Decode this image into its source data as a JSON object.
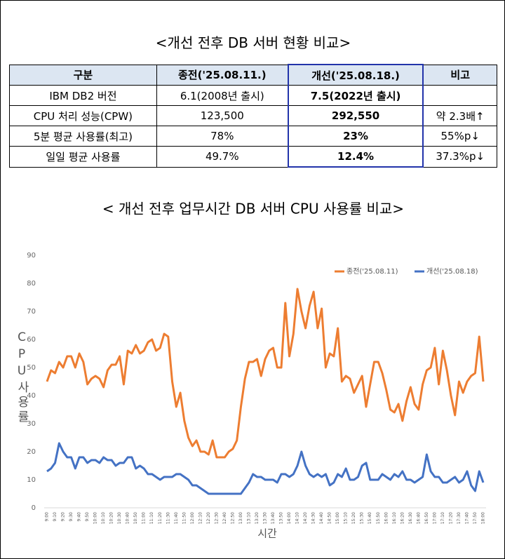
{
  "table": {
    "title": "<개선 전후 DB 서버 현황 비교>",
    "header": [
      "구분",
      "종전('25.08.11.)",
      "개선('25.08.18.)",
      "비고"
    ],
    "rows": [
      [
        "IBM DB2 버전",
        "6.1(2008년 출시)",
        "7.5(2022년 출시)"
      ],
      [
        "CPU 처리 성능(CPW)",
        "123,500",
        "292,550",
        "약 2.3배↑"
      ],
      [
        "5분 평균 사용률(최고)",
        "78%",
        "23%",
        "55%p↓"
      ],
      [
        "일일 평균 사용률",
        "49.7%",
        "12.4%",
        "37.3%p↓"
      ]
    ]
  },
  "chart_data": {
    "type": "line",
    "title": "< 개선 전후 업무시간 DB 서버 CPU 사용률 비교>",
    "y_label": "CPU사용률",
    "x_label": "시간",
    "categories": [
      "9:00",
      null,
      "9:10",
      null,
      "9:20",
      null,
      "9:30",
      null,
      "9:40",
      null,
      "9:50",
      null,
      "10:00",
      null,
      "10:10",
      null,
      "10:20",
      null,
      "10:30",
      null,
      "10:40",
      null,
      "10:50",
      null,
      "11:00",
      null,
      "11:10",
      null,
      "11:20",
      null,
      "11:30",
      null,
      "11:40",
      null,
      "11:50",
      null,
      "12:00",
      null,
      "12:10",
      null,
      "12:20",
      null,
      "12:30",
      null,
      "12:40",
      null,
      "12:50",
      null,
      "13:00",
      null,
      "13:10",
      null,
      "13:20",
      null,
      "13:30",
      null,
      "13:40",
      null,
      "13:50",
      null,
      "14:00",
      null,
      "14:10",
      null,
      "14:20",
      null,
      "14:30",
      null,
      "14:40",
      null,
      "14:50",
      null,
      "15:00",
      null,
      "15:10",
      null,
      "15:20",
      null,
      "15:30",
      null,
      "15:40",
      null,
      "15:50",
      null,
      "16:00",
      null,
      "16:10",
      null,
      "16:20",
      null,
      "16:30",
      null,
      "16:40",
      null,
      "16:50",
      null,
      "17:00",
      null,
      "17:10",
      null,
      "17:20",
      null,
      "17:30",
      null,
      "17:40",
      null,
      "17:50",
      null,
      "18:00"
    ],
    "series": [
      {
        "name": "종전('25.08.11)",
        "color": "#ed7d31",
        "values": [
          45,
          49,
          48,
          52,
          50,
          54,
          54,
          50,
          55,
          52,
          44,
          46,
          47,
          46,
          43,
          49,
          51,
          51,
          54,
          44,
          56,
          55,
          58,
          55,
          56,
          59,
          60,
          56,
          57,
          62,
          61,
          45,
          36,
          41,
          31,
          25,
          22,
          24,
          20,
          20,
          19,
          24,
          18,
          18,
          18,
          20,
          21,
          24,
          36,
          46,
          52,
          52,
          53,
          47,
          53,
          56,
          57,
          50,
          50,
          73,
          54,
          62,
          78,
          70,
          64,
          72,
          77,
          64,
          71,
          50,
          55,
          54,
          64,
          45,
          47,
          46,
          41,
          44,
          47,
          36,
          44,
          52,
          52,
          48,
          42,
          35,
          34,
          37,
          31,
          38,
          43,
          37,
          35,
          44,
          49,
          50,
          57,
          44,
          56,
          49,
          40,
          33,
          45,
          41,
          45,
          47,
          48,
          61,
          45
        ]
      },
      {
        "name": "개선('25.08.18)",
        "color": "#4472c4",
        "values": [
          13,
          14,
          16,
          23,
          20,
          18,
          18,
          14,
          18,
          18,
          16,
          17,
          17,
          16,
          18,
          17,
          17,
          15,
          16,
          16,
          18,
          18,
          14,
          15,
          14,
          12,
          12,
          11,
          10,
          11,
          11,
          11,
          12,
          12,
          11,
          10,
          8,
          8,
          7,
          6,
          5,
          5,
          5,
          5,
          5,
          5,
          5,
          5,
          5,
          7,
          9,
          12,
          11,
          11,
          10,
          10,
          10,
          9,
          12,
          12,
          11,
          12,
          15,
          20,
          15,
          12,
          11,
          12,
          11,
          12,
          8,
          9,
          12,
          11,
          14,
          10,
          10,
          11,
          15,
          16,
          10,
          10,
          10,
          12,
          11,
          10,
          12,
          11,
          13,
          10,
          10,
          9,
          10,
          11,
          19,
          13,
          11,
          11,
          9,
          9,
          10,
          11,
          9,
          10,
          13,
          8,
          6,
          13,
          9
        ]
      }
    ],
    "ylim": [
      0,
      90
    ],
    "yticks": [
      0,
      10,
      20,
      30,
      40,
      50,
      60,
      70,
      80,
      90
    ],
    "grid": false,
    "legend": "top-right"
  }
}
